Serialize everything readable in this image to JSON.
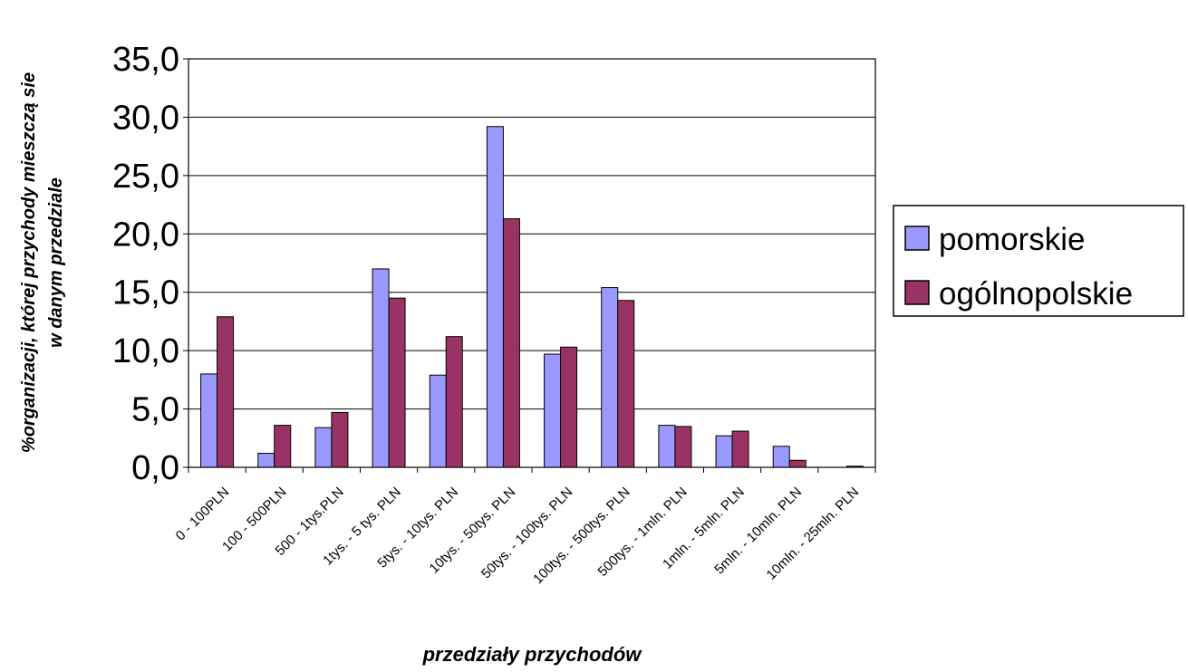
{
  "chart_data": {
    "type": "bar",
    "title": "",
    "xlabel": "przedziały przychodów",
    "ylabel_lines": [
      "%organizacji, której przychody mieszczą sie",
      "w danym przedziale"
    ],
    "ylim": [
      0,
      35
    ],
    "yticks": [
      "0,0",
      "5,0",
      "10,0",
      "15,0",
      "20,0",
      "25,0",
      "30,0",
      "35,0"
    ],
    "grid": true,
    "legend_position": "right",
    "categories": [
      "0 - 100PLN",
      "100 - 500PLN",
      "500 - 1tys.PLN",
      "1tys. - 5 tys. PLN",
      "5tys. - 10tys. PLN",
      "10tys. - 50tys. PLN",
      "50tys. - 100tys. PLN",
      "100tys. - 500tys. PLN",
      "500tys. - 1mln. PLN",
      "1mln. - 5mln. PLN",
      "5mln. - 10mln. PLN",
      "10mln. - 25mln. PLN"
    ],
    "series": [
      {
        "name": "pomorskie",
        "color": "#9999ff",
        "values": [
          8.0,
          1.2,
          3.4,
          17.0,
          7.9,
          29.2,
          9.7,
          15.4,
          3.6,
          2.7,
          1.8,
          0.0
        ]
      },
      {
        "name": "ogólnopolskie",
        "color": "#993366",
        "values": [
          12.9,
          3.6,
          4.7,
          14.5,
          11.2,
          21.3,
          10.3,
          14.3,
          3.5,
          3.1,
          0.6,
          0.1
        ]
      }
    ]
  }
}
